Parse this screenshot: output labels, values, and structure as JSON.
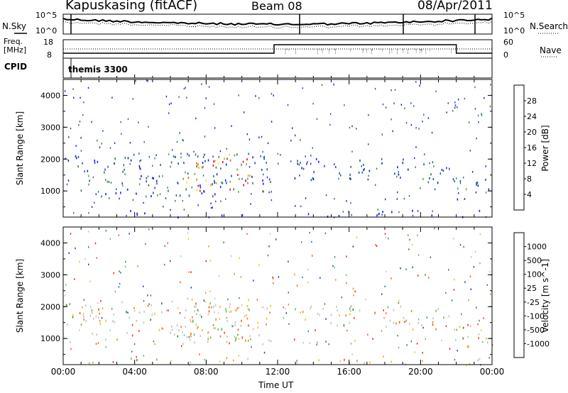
{
  "header": {
    "station": "Kapuskasing (fitACF)",
    "beam": "Beam 08",
    "date": "08/Apr/2011"
  },
  "sky_panel": {
    "left_label": "N.Sky",
    "right_label": "N.Search",
    "left_ticks": [
      "10^5",
      "10^0"
    ],
    "right_ticks": [
      "10^5",
      "10^0"
    ]
  },
  "freq_panel": {
    "left_label_1": "Freq.",
    "left_label_2": "[MHz]",
    "right_label": "Nave",
    "left_ticks": [
      "18",
      "8"
    ],
    "right_ticks": [
      "60",
      "0"
    ]
  },
  "cpid_panel": {
    "label": "CPID",
    "text": "themis 3300"
  },
  "chart_data": [
    {
      "type": "heatmap",
      "title": "",
      "xlabel": "",
      "ylabel": "Slant Range [km]",
      "ylim": [
        180,
        4500
      ],
      "yticks": [
        "1000",
        "2000",
        "3000",
        "4000"
      ],
      "colorbar_label": "Power [dB]",
      "colorbar_ticks": [
        "4",
        "8",
        "12",
        "16",
        "20",
        "24",
        "28"
      ],
      "colorbar_colors": [
        "#1a1aff",
        "#2a4db8",
        "#2e7a56",
        "#62b24a",
        "#f2e030",
        "#f0a020",
        "#e86418",
        "#e01a10"
      ]
    },
    {
      "type": "heatmap",
      "title": "",
      "xlabel": "Time UT",
      "ylabel": "Slant Range [km]",
      "ylim": [
        180,
        4500
      ],
      "yticks": [
        "1000",
        "2000",
        "3000",
        "4000"
      ],
      "xticks": [
        "00:00",
        "04:00",
        "08:00",
        "12:00",
        "16:00",
        "20:00",
        "00:00"
      ],
      "colorbar_label": "Velocity [m s^-1]",
      "colorbar_ticks": [
        "1000",
        "500",
        "100",
        "25",
        "-25",
        "-100",
        "-500",
        "-1000"
      ],
      "colorbar_colors": [
        "#1f3fae",
        "#2e7aa6",
        "#2e8a3a",
        "#64c24a",
        "#c4c4c0",
        "#f2c224",
        "#f08a1a",
        "#e85a14",
        "#e01a10"
      ]
    }
  ]
}
